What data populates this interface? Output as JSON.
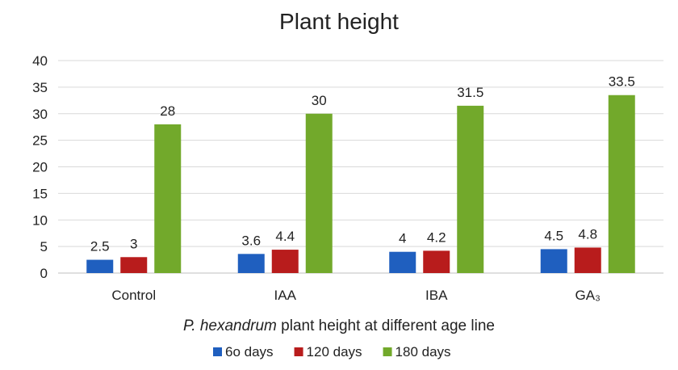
{
  "chart_data": {
    "type": "bar",
    "title": "Plant height",
    "xlabel_italic": "P. hexandrum",
    "xlabel_rest": " plant height at different age line",
    "ylabel": "",
    "ylim": [
      0,
      40
    ],
    "yticks": [
      0,
      5,
      10,
      15,
      20,
      25,
      30,
      35,
      40
    ],
    "categories": [
      "Control",
      "IAA",
      "IBA",
      "GA₃"
    ],
    "series": [
      {
        "name": "6o days",
        "color": "#1f5fbf",
        "values": [
          2.5,
          3.6,
          4,
          4.5
        ],
        "labels": [
          "2.5",
          "3.6",
          "4",
          "4.5"
        ]
      },
      {
        "name": "120 days",
        "color": "#b81c1c",
        "values": [
          3,
          4.4,
          4.2,
          4.8
        ],
        "labels": [
          "3",
          "4.4",
          "4.2",
          "4.8"
        ]
      },
      {
        "name": "180 days",
        "color": "#72a92b",
        "values": [
          28,
          30,
          31.5,
          33.5
        ],
        "labels": [
          "28",
          "30",
          "31.5",
          "33.5"
        ]
      }
    ],
    "grid": true,
    "legend_position": "bottom"
  }
}
